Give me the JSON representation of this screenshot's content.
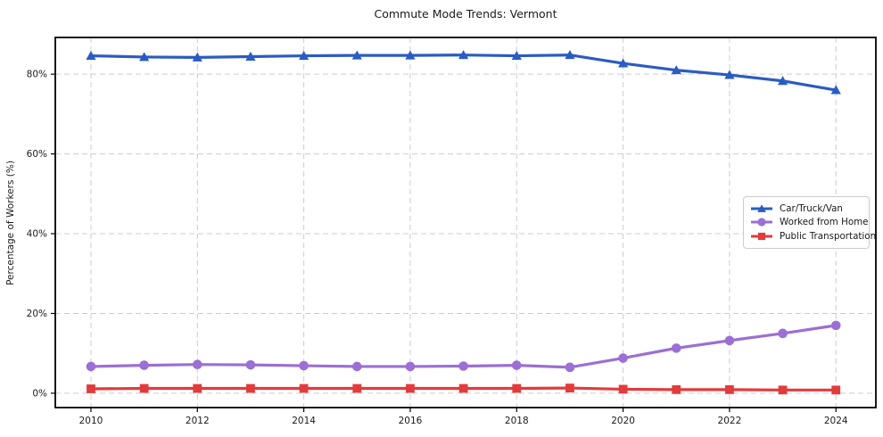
{
  "chart_data": {
    "type": "line",
    "title": "Commute Mode Trends: Vermont",
    "ylabel": "Percentage of Workers (%)",
    "xlabel": "",
    "x": [
      2010,
      2011,
      2012,
      2013,
      2014,
      2015,
      2016,
      2017,
      2018,
      2019,
      2020,
      2021,
      2022,
      2023,
      2024
    ],
    "series": [
      {
        "name": "Car/Truck/Van",
        "color": "#2a5cc2",
        "marker": "triangle",
        "values": [
          84.6,
          84.3,
          84.2,
          84.4,
          84.6,
          84.7,
          84.7,
          84.8,
          84.6,
          84.8,
          82.7,
          81.0,
          79.8,
          78.3,
          76.0
        ]
      },
      {
        "name": "Worked from Home",
        "color": "#9b6fd4",
        "marker": "circle",
        "values": [
          6.7,
          7.0,
          7.2,
          7.1,
          6.9,
          6.7,
          6.7,
          6.8,
          7.0,
          6.5,
          8.8,
          11.3,
          13.2,
          15.0,
          17.0
        ]
      },
      {
        "name": "Public Transportation",
        "color": "#e23b3c",
        "marker": "square",
        "values": [
          1.1,
          1.2,
          1.2,
          1.2,
          1.2,
          1.2,
          1.2,
          1.2,
          1.2,
          1.3,
          1.0,
          0.9,
          0.9,
          0.8,
          0.8
        ]
      }
    ],
    "xticks": [
      2010,
      2012,
      2014,
      2016,
      2018,
      2020,
      2022,
      2024
    ],
    "xtick_labels": [
      "2010",
      "2012",
      "2014",
      "2016",
      "2018",
      "2020",
      "2022",
      "2024"
    ],
    "ytick_values": [
      0,
      20,
      40,
      60,
      80
    ],
    "yticks": [
      "0%",
      "20%",
      "40%",
      "60%",
      "80%"
    ],
    "xlim": [
      2009.33,
      2024.75
    ],
    "ylim": [
      -3.6,
      89.2
    ],
    "grid": true,
    "grid_color": "#cccccc",
    "frame_color": "#000000",
    "legend_position": "center-right"
  }
}
